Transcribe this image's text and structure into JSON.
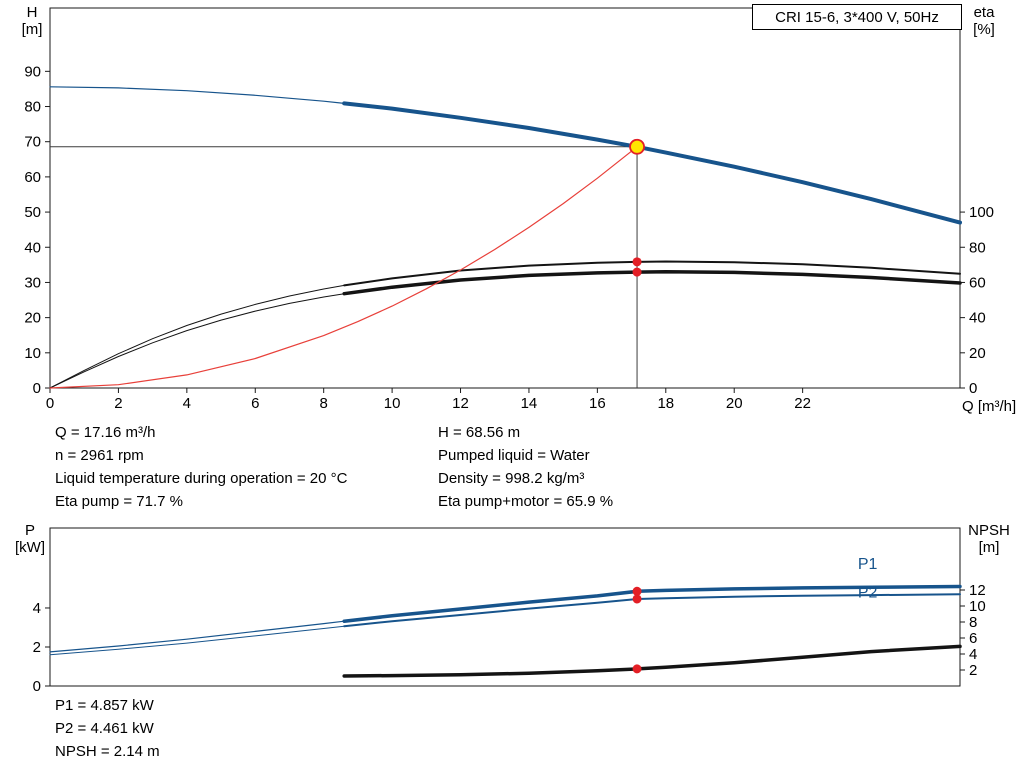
{
  "colors": {
    "blue": "#17548c",
    "black": "#141414",
    "red": "#e8403a",
    "dot_red": "#e31f26",
    "duty_yellow": "#ffe600",
    "duty_ring": "#e31f26",
    "axis": "#1a1a1a",
    "crosshair": "#3c3c3c"
  },
  "info_top": {
    "left": [
      "Q = 17.16 m³/h",
      "n = 2961 rpm",
      "Liquid temperature during operation = 20 °C",
      "Eta pump = 71.7 %"
    ],
    "right": [
      "H = 68.56 m",
      "Pumped liquid = Water",
      "Density = 998.2 kg/m³",
      "Eta pump+motor = 65.9 %"
    ]
  },
  "info_bottom": [
    "P1 = 4.857 kW",
    "P2 = 4.461 kW",
    "NPSH = 2.14 m"
  ],
  "chart_data": [
    {
      "type": "line",
      "title": "CRI 15-6, 3*400 V, 50Hz",
      "x_axis": {
        "label": "Q [m³/h]",
        "min": 0,
        "max": 26.6,
        "ticks": [
          0,
          2,
          4,
          6,
          8,
          10,
          12,
          14,
          16,
          18,
          20,
          22
        ]
      },
      "y_left": {
        "corner": [
          "H",
          "[m]"
        ],
        "min": 0,
        "max": 108,
        "ticks": [
          0,
          10,
          20,
          30,
          40,
          50,
          60,
          70,
          80,
          90
        ]
      },
      "y_right": {
        "corner": [
          "eta",
          "[%]"
        ],
        "min": 0,
        "max": 216,
        "ticks": [
          0,
          20,
          40,
          60,
          80,
          100
        ]
      },
      "duty_point": {
        "q": 17.16,
        "h": 68.56
      },
      "series": [
        {
          "name": "eta-pump-motor-curve",
          "axis": "right",
          "color": "#141414",
          "split": 8.6,
          "width_thin": 1,
          "width_thick": 3.5,
          "points": [
            [
              0,
              0
            ],
            [
              1,
              9.2
            ],
            [
              2,
              17.9
            ],
            [
              3,
              25.7
            ],
            [
              4,
              32.6
            ],
            [
              5,
              38.6
            ],
            [
              6,
              43.7
            ],
            [
              7,
              48.1
            ],
            [
              8,
              51.7
            ],
            [
              8.6,
              53.6
            ],
            [
              10,
              57.3
            ],
            [
              12,
              61.4
            ],
            [
              14,
              64.0
            ],
            [
              16,
              65.4
            ],
            [
              17.16,
              65.9
            ],
            [
              18,
              66.1
            ],
            [
              20,
              65.7
            ],
            [
              22,
              64.6
            ],
            [
              24,
              62.8
            ],
            [
              26.6,
              59.7
            ]
          ]
        },
        {
          "name": "eta-pump-curve",
          "axis": "right",
          "color": "#141414",
          "split": 8.6,
          "width_thin": 1,
          "width_thick": 2,
          "points": [
            [
              0,
              0
            ],
            [
              1,
              10
            ],
            [
              2,
              19.5
            ],
            [
              3,
              28
            ],
            [
              4,
              35.5
            ],
            [
              5,
              42
            ],
            [
              6,
              47.5
            ],
            [
              7,
              52.3
            ],
            [
              8,
              56.3
            ],
            [
              8.6,
              58.3
            ],
            [
              10,
              62.3
            ],
            [
              12,
              66.8
            ],
            [
              14,
              69.6
            ],
            [
              16,
              71.2
            ],
            [
              17.16,
              71.7
            ],
            [
              18,
              71.9
            ],
            [
              20,
              71.5
            ],
            [
              22,
              70.3
            ],
            [
              24,
              68.3
            ],
            [
              26.6,
              64.9
            ]
          ]
        },
        {
          "name": "pump-hq-curve",
          "axis": "left",
          "color": "#17548c",
          "split": 8.6,
          "width_thin": 1.2,
          "width_thick": 4,
          "points": [
            [
              0,
              85.6
            ],
            [
              2,
              85.3
            ],
            [
              4,
              84.5
            ],
            [
              6,
              83.2
            ],
            [
              8,
              81.5
            ],
            [
              8.6,
              80.9
            ],
            [
              10,
              79.4
            ],
            [
              12,
              76.8
            ],
            [
              14,
              73.9
            ],
            [
              16,
              70.6
            ],
            [
              17.16,
              68.56
            ],
            [
              18,
              66.9
            ],
            [
              20,
              62.9
            ],
            [
              22,
              58.5
            ],
            [
              24,
              53.7
            ],
            [
              26.6,
              47.0
            ]
          ]
        },
        {
          "name": "system-curve",
          "axis": "left",
          "color": "#e8403a",
          "width": 1.2,
          "points": [
            [
              0,
              0
            ],
            [
              2,
              0.93
            ],
            [
              4,
              3.73
            ],
            [
              6,
              8.38
            ],
            [
              8,
              14.9
            ],
            [
              9,
              18.86
            ],
            [
              10,
              23.29
            ],
            [
              11,
              28.18
            ],
            [
              12,
              33.53
            ],
            [
              13,
              39.36
            ],
            [
              14,
              45.64
            ],
            [
              15,
              52.4
            ],
            [
              16,
              59.62
            ],
            [
              17.16,
              68.56
            ]
          ]
        }
      ],
      "markers": [
        {
          "type": "dot",
          "q": 17.16,
          "v": 71.7,
          "axis": "right"
        },
        {
          "type": "dot",
          "q": 17.16,
          "v": 65.9,
          "axis": "right"
        },
        {
          "type": "duty",
          "q": 17.16,
          "v": 68.56,
          "axis": "left"
        }
      ]
    },
    {
      "type": "line",
      "title": "",
      "x_axis": {
        "label": "",
        "min": 0,
        "max": 26.6,
        "ticks": []
      },
      "y_left": {
        "corner": [
          "P",
          "[kW]"
        ],
        "min": 0,
        "max": 8.1,
        "ticks": [
          0,
          2,
          4
        ]
      },
      "y_right": {
        "corner": [
          "NPSH",
          "[m]"
        ],
        "min": 0,
        "max": 19.75,
        "ticks": [
          2,
          4,
          6,
          8,
          10,
          12
        ]
      },
      "series": [
        {
          "name": "p1-curve",
          "axis": "left",
          "color": "#17548c",
          "split": 8.6,
          "width_thin": 1.2,
          "width_thick": 3.5,
          "points": [
            [
              0,
              1.75
            ],
            [
              2,
              2.05
            ],
            [
              4,
              2.4
            ],
            [
              6,
              2.8
            ],
            [
              8,
              3.2
            ],
            [
              8.6,
              3.32
            ],
            [
              10,
              3.6
            ],
            [
              12,
              3.95
            ],
            [
              14,
              4.3
            ],
            [
              16,
              4.62
            ],
            [
              17.16,
              4.857
            ],
            [
              18,
              4.9
            ],
            [
              20,
              4.98
            ],
            [
              22,
              5.03
            ],
            [
              24,
              5.06
            ],
            [
              26.6,
              5.1
            ]
          ]
        },
        {
          "name": "p2-curve",
          "axis": "left",
          "color": "#17548c",
          "split": 8.6,
          "width_thin": 1,
          "width_thick": 2,
          "points": [
            [
              0,
              1.6
            ],
            [
              2,
              1.88
            ],
            [
              4,
              2.2
            ],
            [
              6,
              2.57
            ],
            [
              8,
              2.95
            ],
            [
              8.6,
              3.06
            ],
            [
              10,
              3.32
            ],
            [
              12,
              3.64
            ],
            [
              14,
              3.97
            ],
            [
              16,
              4.27
            ],
            [
              17.16,
              4.461
            ],
            [
              18,
              4.5
            ],
            [
              20,
              4.58
            ],
            [
              22,
              4.63
            ],
            [
              24,
              4.66
            ],
            [
              26.6,
              4.7
            ]
          ]
        },
        {
          "name": "npsh-curve",
          "axis": "right",
          "color": "#141414",
          "split": 8.6,
          "width_thin": 0,
          "width_thick": 3.5,
          "points": [
            [
              8.6,
              1.25
            ],
            [
              10,
              1.3
            ],
            [
              12,
              1.4
            ],
            [
              14,
              1.6
            ],
            [
              16,
              1.9
            ],
            [
              17.16,
              2.14
            ],
            [
              18,
              2.35
            ],
            [
              20,
              2.9
            ],
            [
              22,
              3.6
            ],
            [
              24,
              4.3
            ],
            [
              26.6,
              4.95
            ]
          ]
        }
      ],
      "markers": [
        {
          "type": "dot",
          "q": 17.16,
          "v": 4.857,
          "axis": "left"
        },
        {
          "type": "dot",
          "q": 17.16,
          "v": 4.461,
          "axis": "left"
        },
        {
          "type": "dot",
          "q": 17.16,
          "v": 2.14,
          "axis": "right"
        }
      ],
      "labels": [
        {
          "text": "P1",
          "q": 23.9,
          "v": 6.25,
          "axis": "left"
        },
        {
          "text": "P2",
          "q": 23.9,
          "v": 4.8,
          "axis": "left"
        }
      ]
    }
  ]
}
